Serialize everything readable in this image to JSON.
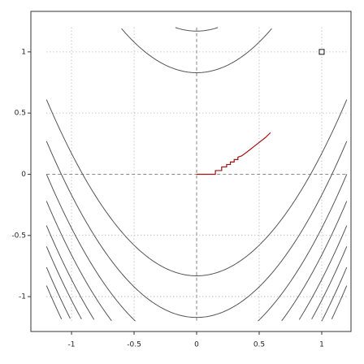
{
  "chart_data": {
    "type": "contour",
    "xlim": [
      -1.325,
      1.234
    ],
    "ylim": [
      -1.285,
      1.331
    ],
    "xticks": [
      -1,
      -0.5,
      0,
      0.5,
      1
    ],
    "yticks": [
      -1,
      -0.5,
      0,
      0.5,
      1
    ],
    "grid": true,
    "domain": [
      -1.2,
      1.2
    ],
    "contour_color": "#555555",
    "levels": [
      1.17,
      0.83,
      -0.83,
      -1.17,
      -1.44,
      -1.66,
      -1.86,
      -2.03,
      -2.2,
      -2.35
    ],
    "path": {
      "color": "#a01010",
      "x": [
        0,
        0.15,
        0.15,
        0.2,
        0.2,
        0.24,
        0.24,
        0.27,
        0.27,
        0.3,
        0.3,
        0.33,
        0.33,
        0.36,
        0.4,
        0.45,
        0.5,
        0.55,
        0.59
      ],
      "y": [
        0,
        0,
        0.03,
        0.03,
        0.06,
        0.06,
        0.08,
        0.08,
        0.1,
        0.1,
        0.12,
        0.12,
        0.14,
        0.15,
        0.18,
        0.22,
        0.26,
        0.3,
        0.34
      ]
    },
    "points": {
      "x": [
        1
      ],
      "y": [
        1
      ]
    }
  }
}
